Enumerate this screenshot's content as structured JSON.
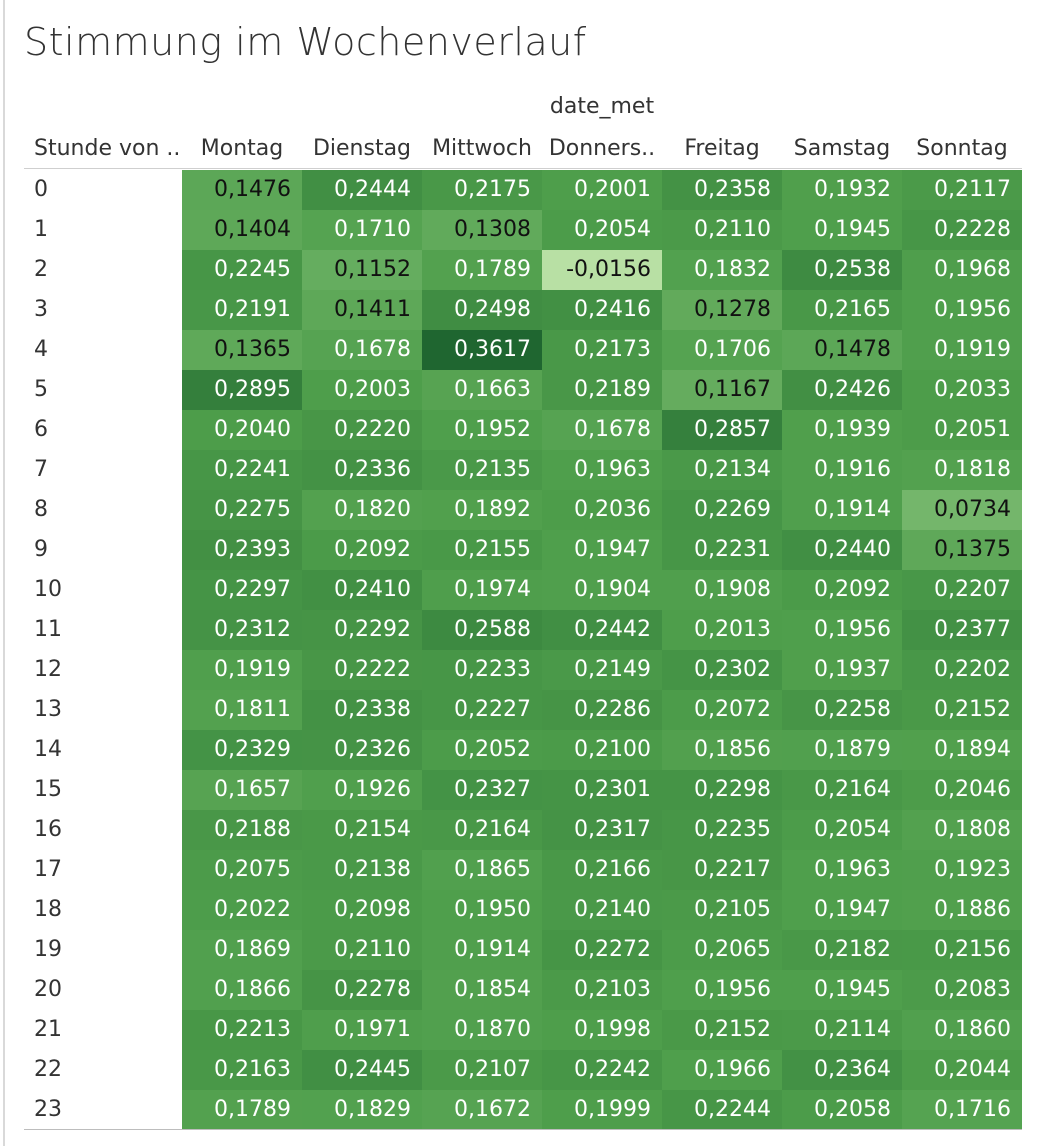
{
  "title": "Stimmung im Wochenverlauf",
  "column_field_label": "date_met",
  "row_field_label": "Stunde von ..",
  "chart_data": {
    "type": "heatmap",
    "x": [
      "Montag",
      "Dienstag",
      "Mittwoch",
      "Donners..",
      "Freitag",
      "Samstag",
      "Sonntag"
    ],
    "y": [
      "0",
      "1",
      "2",
      "3",
      "4",
      "5",
      "6",
      "7",
      "8",
      "9",
      "10",
      "11",
      "12",
      "13",
      "14",
      "15",
      "16",
      "17",
      "18",
      "19",
      "20",
      "21",
      "22",
      "23"
    ],
    "values": [
      [
        "0,1476",
        "0,2444",
        "0,2175",
        "0,2001",
        "0,2358",
        "0,1932",
        "0,2117"
      ],
      [
        "0,1404",
        "0,1710",
        "0,1308",
        "0,2054",
        "0,2110",
        "0,1945",
        "0,2228"
      ],
      [
        "0,2245",
        "0,1152",
        "0,1789",
        "-0,0156",
        "0,1832",
        "0,2538",
        "0,1968"
      ],
      [
        "0,2191",
        "0,1411",
        "0,2498",
        "0,2416",
        "0,1278",
        "0,2165",
        "0,1956"
      ],
      [
        "0,1365",
        "0,1678",
        "0,3617",
        "0,2173",
        "0,1706",
        "0,1478",
        "0,1919"
      ],
      [
        "0,2895",
        "0,2003",
        "0,1663",
        "0,2189",
        "0,1167",
        "0,2426",
        "0,2033"
      ],
      [
        "0,2040",
        "0,2220",
        "0,1952",
        "0,1678",
        "0,2857",
        "0,1939",
        "0,2051"
      ],
      [
        "0,2241",
        "0,2336",
        "0,2135",
        "0,1963",
        "0,2134",
        "0,1916",
        "0,1818"
      ],
      [
        "0,2275",
        "0,1820",
        "0,1892",
        "0,2036",
        "0,2269",
        "0,1914",
        "0,0734"
      ],
      [
        "0,2393",
        "0,2092",
        "0,2155",
        "0,1947",
        "0,2231",
        "0,2440",
        "0,1375"
      ],
      [
        "0,2297",
        "0,2410",
        "0,1974",
        "0,1904",
        "0,1908",
        "0,2092",
        "0,2207"
      ],
      [
        "0,2312",
        "0,2292",
        "0,2588",
        "0,2442",
        "0,2013",
        "0,1956",
        "0,2377"
      ],
      [
        "0,1919",
        "0,2222",
        "0,2233",
        "0,2149",
        "0,2302",
        "0,1937",
        "0,2202"
      ],
      [
        "0,1811",
        "0,2338",
        "0,2227",
        "0,2286",
        "0,2072",
        "0,2258",
        "0,2152"
      ],
      [
        "0,2329",
        "0,2326",
        "0,2052",
        "0,2100",
        "0,1856",
        "0,1879",
        "0,1894"
      ],
      [
        "0,1657",
        "0,1926",
        "0,2327",
        "0,2301",
        "0,2298",
        "0,2164",
        "0,2046"
      ],
      [
        "0,2188",
        "0,2154",
        "0,2164",
        "0,2317",
        "0,2235",
        "0,2054",
        "0,1808"
      ],
      [
        "0,2075",
        "0,2138",
        "0,1865",
        "0,2166",
        "0,2217",
        "0,1963",
        "0,1923"
      ],
      [
        "0,2022",
        "0,2098",
        "0,1950",
        "0,2140",
        "0,2105",
        "0,1947",
        "0,1886"
      ],
      [
        "0,1869",
        "0,2110",
        "0,1914",
        "0,2272",
        "0,2065",
        "0,2182",
        "0,2156"
      ],
      [
        "0,1866",
        "0,2278",
        "0,1854",
        "0,2103",
        "0,1956",
        "0,1945",
        "0,2083"
      ],
      [
        "0,2213",
        "0,1971",
        "0,1870",
        "0,1998",
        "0,2152",
        "0,2114",
        "0,1860"
      ],
      [
        "0,2163",
        "0,2445",
        "0,2107",
        "0,2242",
        "0,1966",
        "0,2364",
        "0,2044"
      ],
      [
        "0,1789",
        "0,1829",
        "0,1672",
        "0,1999",
        "0,2244",
        "0,2058",
        "0,1716"
      ]
    ],
    "colors": {
      "low": "#b8e0a4",
      "mid": "#4e9e4b",
      "high": "#1f6630",
      "text_light": "#ffffff",
      "text_dark": "#111111"
    },
    "legend": "none"
  }
}
